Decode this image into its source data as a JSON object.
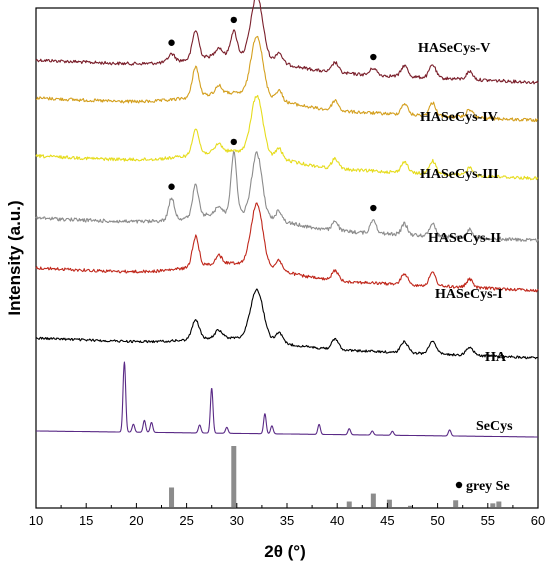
{
  "chart_data": {
    "type": "line",
    "xlabel": "2θ (°)",
    "ylabel": "Intensity (a.u.)",
    "xlim": [
      10,
      60
    ],
    "xticks": [
      10,
      15,
      20,
      25,
      30,
      35,
      40,
      45,
      50,
      55,
      60
    ],
    "yticks_shown": false,
    "grid": false,
    "series": [
      {
        "name": "HASeCys-V",
        "color": "#7a1f2b",
        "markers_x": [
          23.5,
          29.7,
          43.6
        ],
        "peaks": [
          [
            23.5,
            8
          ],
          [
            25.9,
            28
          ],
          [
            28.2,
            8
          ],
          [
            29.7,
            24
          ],
          [
            32.0,
            62
          ],
          [
            34.2,
            10
          ],
          [
            39.8,
            10
          ],
          [
            43.6,
            7
          ],
          [
            46.7,
            11
          ],
          [
            49.5,
            13
          ],
          [
            53.2,
            8
          ]
        ]
      },
      {
        "name": "HASeCys-IV",
        "color": "#d4a020",
        "peaks": [
          [
            25.9,
            30
          ],
          [
            28.2,
            8
          ],
          [
            32.0,
            60
          ],
          [
            34.2,
            10
          ],
          [
            39.8,
            10
          ],
          [
            46.7,
            11
          ],
          [
            49.5,
            13
          ],
          [
            53.2,
            8
          ]
        ]
      },
      {
        "name": "HASeCys-III",
        "color": "#e6dc1e",
        "peaks": [
          [
            25.9,
            26
          ],
          [
            28.2,
            8
          ],
          [
            32.0,
            58
          ],
          [
            34.2,
            10
          ],
          [
            39.8,
            10
          ],
          [
            46.7,
            11
          ],
          [
            49.5,
            13
          ],
          [
            53.2,
            8
          ]
        ]
      },
      {
        "name": "HASeCys-II",
        "color": "#8c8c8c",
        "markers_x": [
          23.5,
          29.7,
          43.6
        ],
        "peaks": [
          [
            23.5,
            22
          ],
          [
            25.9,
            32
          ],
          [
            28.2,
            8
          ],
          [
            29.7,
            60
          ],
          [
            32.0,
            62
          ],
          [
            34.2,
            10
          ],
          [
            39.8,
            10
          ],
          [
            43.6,
            14
          ],
          [
            46.7,
            11
          ],
          [
            49.5,
            13
          ],
          [
            53.2,
            8
          ]
        ]
      },
      {
        "name": "HASeCys-I",
        "color": "#c0281c",
        "peaks": [
          [
            25.9,
            30
          ],
          [
            28.2,
            8
          ],
          [
            32.0,
            62
          ],
          [
            34.2,
            10
          ],
          [
            39.8,
            10
          ],
          [
            46.7,
            11
          ],
          [
            49.5,
            13
          ],
          [
            53.2,
            8
          ]
        ]
      },
      {
        "name": "HA",
        "color": "#000000",
        "peaks": [
          [
            25.9,
            20
          ],
          [
            28.2,
            8
          ],
          [
            32.0,
            50
          ],
          [
            34.2,
            10
          ],
          [
            39.8,
            10
          ],
          [
            46.7,
            11
          ],
          [
            49.5,
            13
          ],
          [
            53.2,
            8
          ]
        ]
      },
      {
        "name": "SeCys",
        "color": "#5a2a86",
        "peaks": [
          [
            18.8,
            70
          ],
          [
            19.7,
            8
          ],
          [
            20.8,
            12
          ],
          [
            21.5,
            10
          ],
          [
            26.3,
            8
          ],
          [
            27.5,
            45
          ],
          [
            29.0,
            6
          ],
          [
            32.8,
            20
          ],
          [
            33.5,
            8
          ],
          [
            38.2,
            10
          ],
          [
            41.2,
            6
          ],
          [
            43.5,
            4
          ],
          [
            45.5,
            4
          ],
          [
            51.2,
            6
          ]
        ]
      }
    ],
    "reference": {
      "name": "grey Se",
      "marker": "●",
      "sticks": [
        [
          23.5,
          32
        ],
        [
          29.7,
          100
        ],
        [
          41.2,
          9
        ],
        [
          43.6,
          22
        ],
        [
          45.2,
          12
        ],
        [
          47.3,
          2
        ],
        [
          51.8,
          11
        ],
        [
          55.5,
          6
        ],
        [
          56.1,
          9
        ]
      ]
    }
  }
}
